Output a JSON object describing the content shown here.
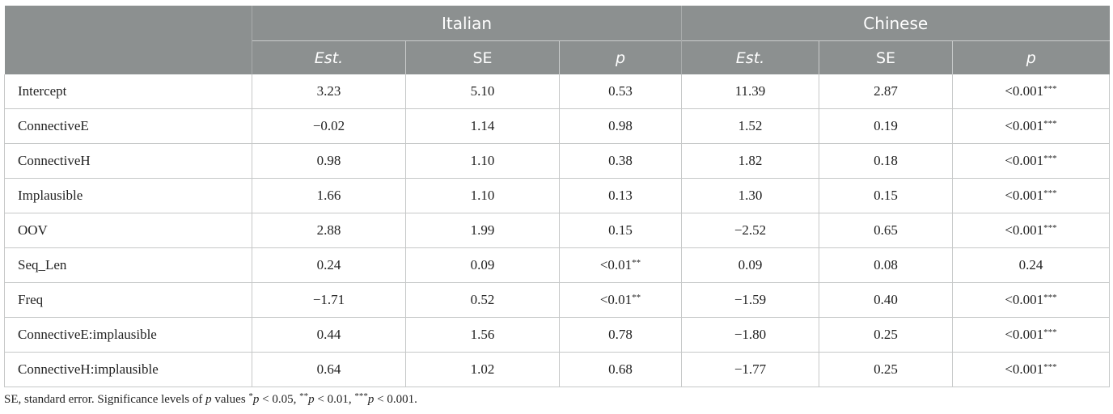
{
  "table": {
    "groups": [
      "Italian",
      "Chinese"
    ],
    "subheaders": [
      "Est.",
      "SE",
      "p",
      "Est.",
      "SE",
      "p"
    ],
    "rows": [
      {
        "label": "Intercept",
        "cells": [
          {
            "v": "3.23"
          },
          {
            "v": "5.10"
          },
          {
            "v": "0.53"
          },
          {
            "v": "11.39"
          },
          {
            "v": "2.87"
          },
          {
            "v": "<0.001",
            "sig": "***"
          }
        ]
      },
      {
        "label": "ConnectiveE",
        "cells": [
          {
            "v": "−0.02"
          },
          {
            "v": "1.14"
          },
          {
            "v": "0.98"
          },
          {
            "v": "1.52"
          },
          {
            "v": "0.19"
          },
          {
            "v": "<0.001",
            "sig": "***"
          }
        ]
      },
      {
        "label": "ConnectiveH",
        "cells": [
          {
            "v": "0.98"
          },
          {
            "v": "1.10"
          },
          {
            "v": "0.38"
          },
          {
            "v": "1.82"
          },
          {
            "v": "0.18"
          },
          {
            "v": "<0.001",
            "sig": "***"
          }
        ]
      },
      {
        "label": "Implausible",
        "cells": [
          {
            "v": "1.66"
          },
          {
            "v": "1.10"
          },
          {
            "v": "0.13"
          },
          {
            "v": "1.30"
          },
          {
            "v": "0.15"
          },
          {
            "v": "<0.001",
            "sig": "***"
          }
        ]
      },
      {
        "label": "OOV",
        "cells": [
          {
            "v": "2.88"
          },
          {
            "v": "1.99"
          },
          {
            "v": "0.15"
          },
          {
            "v": "−2.52"
          },
          {
            "v": "0.65"
          },
          {
            "v": "<0.001",
            "sig": "***"
          }
        ]
      },
      {
        "label": "Seq_Len",
        "cells": [
          {
            "v": "0.24"
          },
          {
            "v": "0.09"
          },
          {
            "v": "<0.01",
            "sig": "**"
          },
          {
            "v": "0.09"
          },
          {
            "v": "0.08"
          },
          {
            "v": "0.24"
          }
        ]
      },
      {
        "label": "Freq",
        "cells": [
          {
            "v": "−1.71"
          },
          {
            "v": "0.52"
          },
          {
            "v": "<0.01",
            "sig": "**"
          },
          {
            "v": "−1.59"
          },
          {
            "v": "0.40"
          },
          {
            "v": "<0.001",
            "sig": "***"
          }
        ]
      },
      {
        "label": "ConnectiveE:implausible",
        "cells": [
          {
            "v": "0.44"
          },
          {
            "v": "1.56"
          },
          {
            "v": "0.78"
          },
          {
            "v": "−1.80"
          },
          {
            "v": "0.25"
          },
          {
            "v": "<0.001",
            "sig": "***"
          }
        ]
      },
      {
        "label": "ConnectiveH:implausible",
        "cells": [
          {
            "v": "0.64"
          },
          {
            "v": "1.02"
          },
          {
            "v": "0.68"
          },
          {
            "v": "−1.77"
          },
          {
            "v": "0.25"
          },
          {
            "v": "<0.001",
            "sig": "***"
          }
        ]
      }
    ]
  },
  "footnote": {
    "part1": "SE, standard error. Significance levels of ",
    "p_symbol": "p",
    "part2": " values ",
    "sig1_mark": "*",
    "sig1_text": " < 0.05, ",
    "sig2_mark": "**",
    "sig2_text": " < 0.01, ",
    "sig3_mark": "***",
    "sig3_text": " < 0.001."
  }
}
